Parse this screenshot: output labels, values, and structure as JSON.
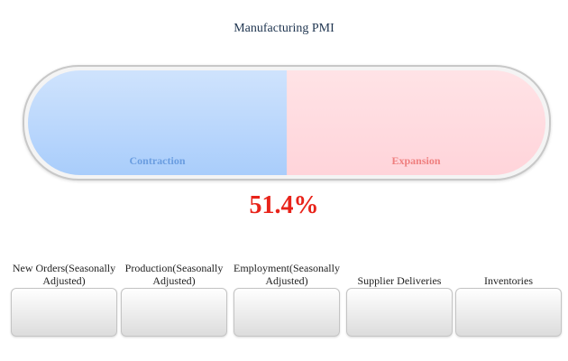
{
  "header": {
    "title": "Manufacturing PMI"
  },
  "gauge": {
    "left_label": "Contraction",
    "right_label": "Expansion",
    "value": "51.4%"
  },
  "components": [
    {
      "label": "New Orders(Seasonally Adjusted)"
    },
    {
      "label": "Production(Seasonally Adjusted)"
    },
    {
      "label": "Employment(Seasonally Adjusted)"
    },
    {
      "label": "Supplier Deliveries"
    },
    {
      "label": "Inventories"
    }
  ]
}
